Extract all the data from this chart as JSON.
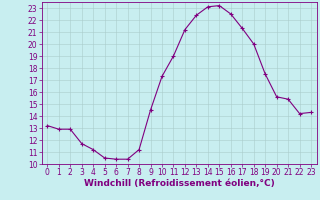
{
  "x": [
    0,
    1,
    2,
    3,
    4,
    5,
    6,
    7,
    8,
    9,
    10,
    11,
    12,
    13,
    14,
    15,
    16,
    17,
    18,
    19,
    20,
    21,
    22,
    23
  ],
  "y": [
    13.2,
    12.9,
    12.9,
    11.7,
    11.2,
    10.5,
    10.4,
    10.4,
    11.2,
    14.5,
    17.3,
    19.0,
    21.2,
    22.4,
    23.1,
    23.2,
    22.5,
    21.3,
    20.0,
    17.5,
    15.6,
    15.4,
    14.2,
    14.3
  ],
  "line_color": "#800080",
  "marker": "+",
  "marker_color": "#800080",
  "bg_color": "#c8eef0",
  "grid_color": "#aacccc",
  "xlabel": "Windchill (Refroidissement éolien,°C)",
  "xlabel_color": "#800080",
  "tick_color": "#800080",
  "spine_color": "#800080",
  "ylim": [
    10,
    23.5
  ],
  "xlim": [
    -0.5,
    23.5
  ],
  "yticks": [
    10,
    11,
    12,
    13,
    14,
    15,
    16,
    17,
    18,
    19,
    20,
    21,
    22,
    23
  ],
  "xticks": [
    0,
    1,
    2,
    3,
    4,
    5,
    6,
    7,
    8,
    9,
    10,
    11,
    12,
    13,
    14,
    15,
    16,
    17,
    18,
    19,
    20,
    21,
    22,
    23
  ],
  "font_size": 5.5,
  "xlabel_fontsize": 6.5,
  "linewidth": 0.8,
  "markersize": 3.0,
  "markeredgewidth": 0.8
}
